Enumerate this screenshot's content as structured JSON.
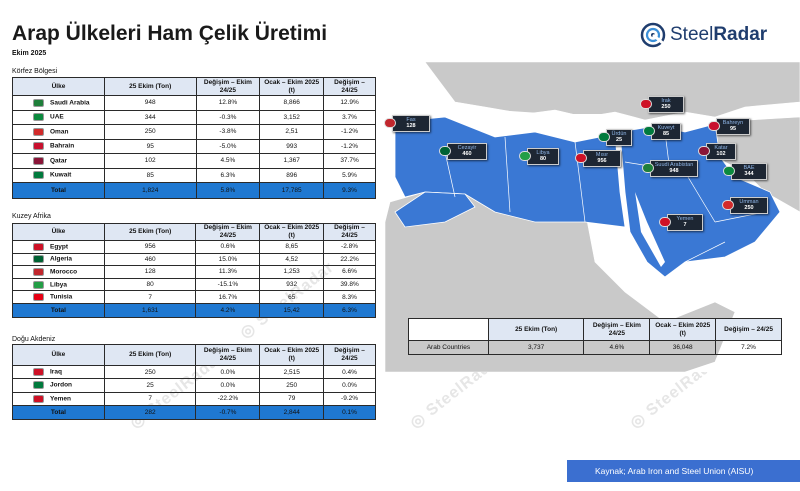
{
  "header": {
    "title": "Arap Ülkeleri Ham Çelik Üretimi",
    "subtitle": "Ekim 2025"
  },
  "logo": {
    "text_light": "Steel",
    "text_bold": "Radar"
  },
  "columns": [
    "Ülke",
    "25 Ekim (Ton)",
    "Değişim – Ekim 24/25",
    "Ocak – Ekim 2025 (t)",
    "Değişim – 24/25"
  ],
  "sections": [
    {
      "label": "Körfez Bölgesi",
      "rows": [
        {
          "country": "Saudi Arabia",
          "v1": "948",
          "v2": "12.8%",
          "v3": "8,866",
          "v4": "12.9%",
          "flag": "#1e7f3a"
        },
        {
          "country": "UAE",
          "v1": "344",
          "v2": "-0.3%",
          "v3": "3,152",
          "v4": "3.7%",
          "flag": "#0b8a3e"
        },
        {
          "country": "Oman",
          "v1": "250",
          "v2": "-3.8%",
          "v3": "2,51",
          "v4": "-1.2%",
          "flag": "#d22b2b"
        },
        {
          "country": "Bahrain",
          "v1": "95",
          "v2": "-5.0%",
          "v3": "993",
          "v4": "-1.2%",
          "flag": "#c8102e"
        },
        {
          "country": "Qatar",
          "v1": "102",
          "v2": "4.5%",
          "v3": "1,367",
          "v4": "37.7%",
          "flag": "#8a1538"
        },
        {
          "country": "Kuwait",
          "v1": "85",
          "v2": "6.3%",
          "v3": "896",
          "v4": "5.9%",
          "flag": "#007a3d"
        }
      ],
      "total": {
        "label": "Total",
        "v1": "1,824",
        "v2": "5.8%",
        "v3": "17,785",
        "v4": "9.3%"
      }
    },
    {
      "label": "Kuzey Afrika",
      "rows": [
        {
          "country": "Egypt",
          "v1": "956",
          "v2": "0.6%",
          "v3": "8,65",
          "v4": "-2.8%",
          "flag": "#ce1126"
        },
        {
          "country": "Algeria",
          "v1": "460",
          "v2": "15.0%",
          "v3": "4,52",
          "v4": "22.2%",
          "flag": "#006233"
        },
        {
          "country": "Morocco",
          "v1": "128",
          "v2": "11.3%",
          "v3": "1,253",
          "v4": "6.6%",
          "flag": "#c1272d"
        },
        {
          "country": "Libya",
          "v1": "80",
          "v2": "-15.1%",
          "v3": "932",
          "v4": "39.8%",
          "flag": "#239e46"
        },
        {
          "country": "Tunisia",
          "v1": "7",
          "v2": "16.7%",
          "v3": "65",
          "v4": "8.3%",
          "flag": "#e70013"
        }
      ],
      "total": {
        "label": "Total",
        "v1": "1,631",
        "v2": "4.2%",
        "v3": "15,42",
        "v4": "6.3%"
      }
    },
    {
      "label": "Doğu Akdeniz",
      "rows": [
        {
          "country": "Iraq",
          "v1": "250",
          "v2": "0.0%",
          "v3": "2,515",
          "v4": "0.4%",
          "flag": "#ce1126"
        },
        {
          "country": "Jordon",
          "v1": "25",
          "v2": "0.0%",
          "v3": "250",
          "v4": "0.0%",
          "flag": "#007a3d"
        },
        {
          "country": "Yemen",
          "v1": "7",
          "v2": "-22.2%",
          "v3": "79",
          "v4": "-9.2%",
          "flag": "#ce1126"
        }
      ],
      "total": {
        "label": "Total",
        "v1": "282",
        "v2": "-0.7%",
        "v3": "2,844",
        "v4": "0.1%"
      }
    }
  ],
  "summary": {
    "columns": [
      "",
      "25 Ekim (Ton)",
      "Değişim – Ekim 24/25",
      "Ocak – Ekim 2025 (t)",
      "Değişim – 24/25"
    ],
    "row": {
      "label": "Arab Countries",
      "v1": "3,737",
      "v2": "4.6%",
      "v3": "36,048",
      "v4": "7.2%"
    }
  },
  "map_callouts": [
    {
      "name": "Fas",
      "value": "128",
      "flag": "#c1272d"
    },
    {
      "name": "Cezayir",
      "value": "460",
      "flag": "#006233"
    },
    {
      "name": "Libya",
      "value": "80",
      "flag": "#239e46"
    },
    {
      "name": "Mısır",
      "value": "956",
      "flag": "#ce1126"
    },
    {
      "name": "Irak",
      "value": "250",
      "flag": "#ce1126"
    },
    {
      "name": "Ürdün",
      "value": "25",
      "flag": "#007a3d"
    },
    {
      "name": "Kuveyt",
      "value": "85",
      "flag": "#007a3d"
    },
    {
      "name": "Bahreyn",
      "value": "95",
      "flag": "#c8102e"
    },
    {
      "name": "Katar",
      "value": "102",
      "flag": "#8a1538"
    },
    {
      "name": "Suudi Arabistan",
      "value": "948",
      "flag": "#1e7f3a"
    },
    {
      "name": "BAE",
      "value": "344",
      "flag": "#0b8a3e"
    },
    {
      "name": "Umman",
      "value": "250",
      "flag": "#d22b2b"
    },
    {
      "name": "Yemen",
      "value": "7",
      "flag": "#ce1126"
    }
  ],
  "source": "Kaynak; Arab Iron and Steel Union (AISU)",
  "colors": {
    "highlight": "#3a78d4",
    "total_row": "#1f78d1",
    "header_cell": "#dfe7f3",
    "source_bar": "#3b6fd0"
  }
}
